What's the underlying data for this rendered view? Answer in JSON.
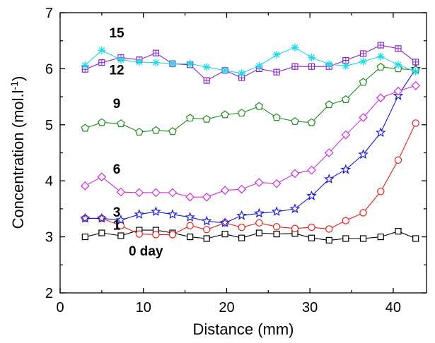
{
  "chart_data": {
    "type": "line",
    "xlabel": "Distance (mm)",
    "ylabel": "Concentration (mol.l",
    "ylabel_sup": "-1",
    "ylabel_end": ")",
    "xlim": [
      0,
      44
    ],
    "ylim": [
      2,
      7
    ],
    "xticks": [
      0,
      10,
      20,
      30,
      40
    ],
    "yticks": [
      2,
      3,
      4,
      5,
      6,
      7
    ],
    "grid": false,
    "series": [
      {
        "name": "0 day",
        "color": "#000000",
        "marker": "square",
        "x": [
          3,
          5,
          7.3,
          9.5,
          11.5,
          13.5,
          15.6,
          17.6,
          19.8,
          21.8,
          23.9,
          26,
          28.2,
          30.2,
          32.3,
          34.3,
          36.4,
          38.5,
          40.6,
          42.7
        ],
        "y": [
          3.0,
          3.07,
          3.02,
          3.12,
          3.12,
          3.07,
          3.0,
          2.97,
          3.05,
          2.98,
          3.07,
          3.05,
          3.06,
          2.98,
          2.94,
          2.97,
          2.97,
          3.0,
          3.1,
          2.97
        ]
      },
      {
        "name": "1",
        "color": "#e0211d",
        "marker": "circle",
        "x": [
          3,
          5,
          7.3,
          9.5,
          11.5,
          13.5,
          15.6,
          17.6,
          19.8,
          21.8,
          23.9,
          26,
          28.2,
          30.2,
          32.3,
          34.3,
          36.4,
          38.5,
          40.6,
          42.7
        ],
        "y": [
          3.33,
          3.33,
          3.2,
          3.05,
          3.04,
          3.04,
          3.2,
          3.13,
          3.25,
          3.17,
          3.25,
          3.18,
          3.15,
          3.17,
          3.14,
          3.29,
          3.43,
          3.81,
          4.37,
          5.03
        ]
      },
      {
        "name": "3",
        "color": "#1a1ad4",
        "marker": "star",
        "x": [
          3,
          5,
          7.3,
          9.5,
          11.5,
          13.5,
          15.6,
          17.6,
          19.8,
          21.8,
          23.9,
          26,
          28.2,
          30.2,
          32.3,
          34.3,
          36.4,
          38.5,
          40.6,
          42.7
        ],
        "y": [
          3.33,
          3.33,
          3.3,
          3.4,
          3.45,
          3.4,
          3.35,
          3.28,
          3.25,
          3.38,
          3.42,
          3.45,
          3.5,
          3.73,
          4.03,
          4.2,
          4.47,
          4.86,
          5.52,
          6.0
        ]
      },
      {
        "name": "6",
        "color": "#cc2ee0",
        "marker": "diamond",
        "x": [
          3,
          5,
          7.3,
          9.5,
          11.5,
          13.5,
          15.6,
          17.6,
          19.8,
          21.8,
          23.9,
          26,
          28.2,
          30.2,
          32.3,
          34.3,
          36.4,
          38.5,
          40.6,
          42.7
        ],
        "y": [
          3.91,
          4.07,
          3.8,
          3.79,
          3.79,
          3.79,
          3.71,
          3.71,
          3.83,
          3.85,
          3.97,
          3.95,
          4.13,
          4.19,
          4.5,
          4.82,
          5.13,
          5.48,
          5.6,
          5.7
        ]
      },
      {
        "name": "9",
        "color": "#1f8a1f",
        "marker": "pentagon",
        "x": [
          3,
          5,
          7.3,
          9.5,
          11.5,
          13.5,
          15.6,
          17.6,
          19.8,
          21.8,
          23.9,
          26,
          28.2,
          30.2,
          32.3,
          34.3,
          36.4,
          38.5,
          40.6,
          42.7
        ],
        "y": [
          4.94,
          5.04,
          5.02,
          4.87,
          4.9,
          4.88,
          5.12,
          5.1,
          5.18,
          5.21,
          5.33,
          5.13,
          5.06,
          5.04,
          5.36,
          5.45,
          5.76,
          6.03,
          6.0,
          5.98
        ]
      },
      {
        "name": "12",
        "color": "#8b25c8",
        "marker": "square-plus",
        "x": [
          3,
          5,
          7.3,
          9.5,
          11.5,
          13.5,
          15.6,
          17.6,
          19.8,
          21.8,
          23.9,
          26,
          28.2,
          30.2,
          32.3,
          34.3,
          36.4,
          38.5,
          40.6,
          42.7
        ],
        "y": [
          5.99,
          6.11,
          6.2,
          6.16,
          6.28,
          6.09,
          6.07,
          5.79,
          5.97,
          5.84,
          6.0,
          5.94,
          6.04,
          6.04,
          6.04,
          6.15,
          6.27,
          6.42,
          6.36,
          6.12
        ]
      },
      {
        "name": "15",
        "color": "#20d8e6",
        "marker": "asterisk",
        "x": [
          3,
          5,
          7.3,
          9.5,
          11.5,
          13.5,
          15.6,
          17.6,
          19.8,
          21.8,
          23.9,
          26,
          28.2,
          30.2,
          32.3,
          34.3,
          36.4,
          38.5,
          40.6,
          42.7
        ],
        "y": [
          6.06,
          6.33,
          6.16,
          6.12,
          6.11,
          6.09,
          6.09,
          6.03,
          5.97,
          5.92,
          6.05,
          6.25,
          6.38,
          6.2,
          6.08,
          6.05,
          6.13,
          6.22,
          6.07,
          5.95
        ]
      }
    ],
    "annotations": [
      {
        "text": "15",
        "x": 6.8,
        "y": 6.56
      },
      {
        "text": "12",
        "x": 6.8,
        "y": 5.9
      },
      {
        "text": "9",
        "x": 6.8,
        "y": 5.3
      },
      {
        "text": "6",
        "x": 6.8,
        "y": 4.13
      },
      {
        "text": "3",
        "x": 6.8,
        "y": 3.36
      },
      {
        "text": "1",
        "x": 6.8,
        "y": 3.13
      },
      {
        "text": "0 day",
        "x": 10.3,
        "y": 2.67
      }
    ]
  }
}
